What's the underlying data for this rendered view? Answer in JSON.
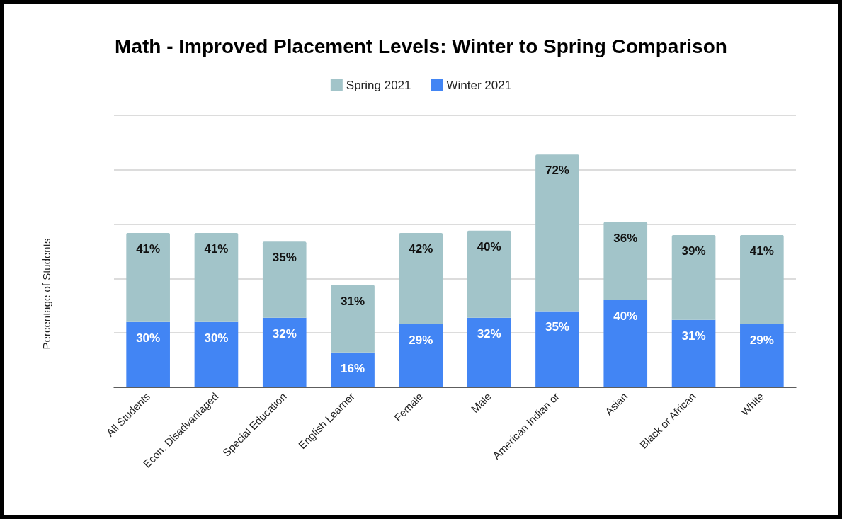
{
  "chart_data": {
    "type": "bar",
    "title": "Math - Improved Placement Levels: Winter to Spring Comparison",
    "ylabel": "Percentage of Students",
    "categories": [
      "All Students",
      "Econ. Disadvantaged",
      "Special Education",
      "English Learner",
      "Female",
      "Male",
      "American Indian or",
      "Asian",
      "Black or African",
      "White"
    ],
    "series": [
      {
        "name": "Winter 2021",
        "color": "#4285f4",
        "values": [
          30,
          30,
          32,
          16,
          29,
          32,
          35,
          40,
          31,
          29
        ],
        "value_labels": [
          "30%",
          "30%",
          "32%",
          "16%",
          "29%",
          "32%",
          "35%",
          "40%",
          "31%",
          "29%"
        ]
      },
      {
        "name": "Spring 2021",
        "color": "#a2c4c9",
        "values": [
          41,
          41,
          35,
          31,
          42,
          40,
          72,
          36,
          39,
          41
        ],
        "value_labels": [
          "41%",
          "41%",
          "35%",
          "31%",
          "42%",
          "40%",
          "72%",
          "36%",
          "39%",
          "41%"
        ]
      }
    ],
    "stacked": true,
    "ylim": [
      0,
      125
    ],
    "yticks": [
      {
        "value": 0,
        "label": null
      },
      {
        "value": 25,
        "label": null
      },
      {
        "value": 50,
        "label": null
      },
      {
        "value": 75,
        "label": null
      },
      {
        "value": 100,
        "label": null
      },
      {
        "value": 125,
        "label": null
      }
    ],
    "tick_labels": "x",
    "grid": "y",
    "legend": "top"
  }
}
